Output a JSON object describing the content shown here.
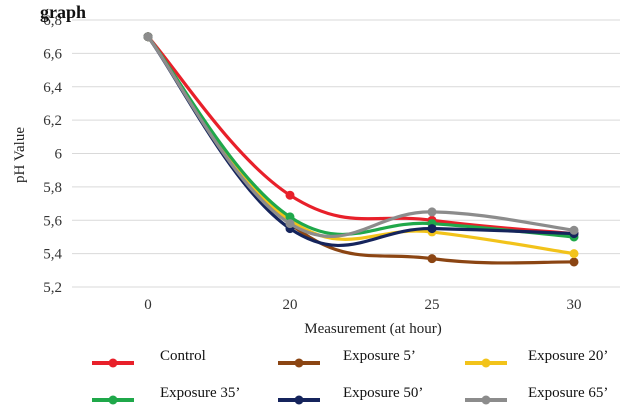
{
  "corner_text": "graph",
  "chart_data": {
    "type": "line",
    "title": "",
    "xlabel": "Measurement (at hour)",
    "ylabel": "pH Value",
    "categories": [
      "0",
      "20",
      "25",
      "30"
    ],
    "ylim": [
      5.2,
      6.8
    ],
    "yticks": [
      "6,8",
      "6,6",
      "6,4",
      "6,2",
      "6",
      "5,8",
      "5,6",
      "5,4",
      "5,2"
    ],
    "ytick_values": [
      6.8,
      6.6,
      6.4,
      6.2,
      6.0,
      5.8,
      5.6,
      5.4,
      5.2
    ],
    "grid": true,
    "legend_position": "bottom",
    "series": [
      {
        "name": "Control",
        "color": "#e8202a",
        "values": [
          6.7,
          5.75,
          5.6,
          5.52
        ]
      },
      {
        "name": "Exposure 5’",
        "color": "#8b4513",
        "values": [
          6.7,
          5.58,
          5.37,
          5.35
        ]
      },
      {
        "name": "Exposure 20’",
        "color": "#f2c31a",
        "values": [
          6.7,
          5.6,
          5.53,
          5.4
        ]
      },
      {
        "name": "Exposure 35’",
        "color": "#1fa84a",
        "values": [
          6.7,
          5.62,
          5.58,
          5.5
        ]
      },
      {
        "name": "Exposure 50’",
        "color": "#15245c",
        "values": [
          6.7,
          5.55,
          5.55,
          5.52
        ]
      },
      {
        "name": "Exposure 65’",
        "color": "#8c8c8c",
        "values": [
          6.7,
          5.58,
          5.65,
          5.54
        ]
      }
    ]
  }
}
